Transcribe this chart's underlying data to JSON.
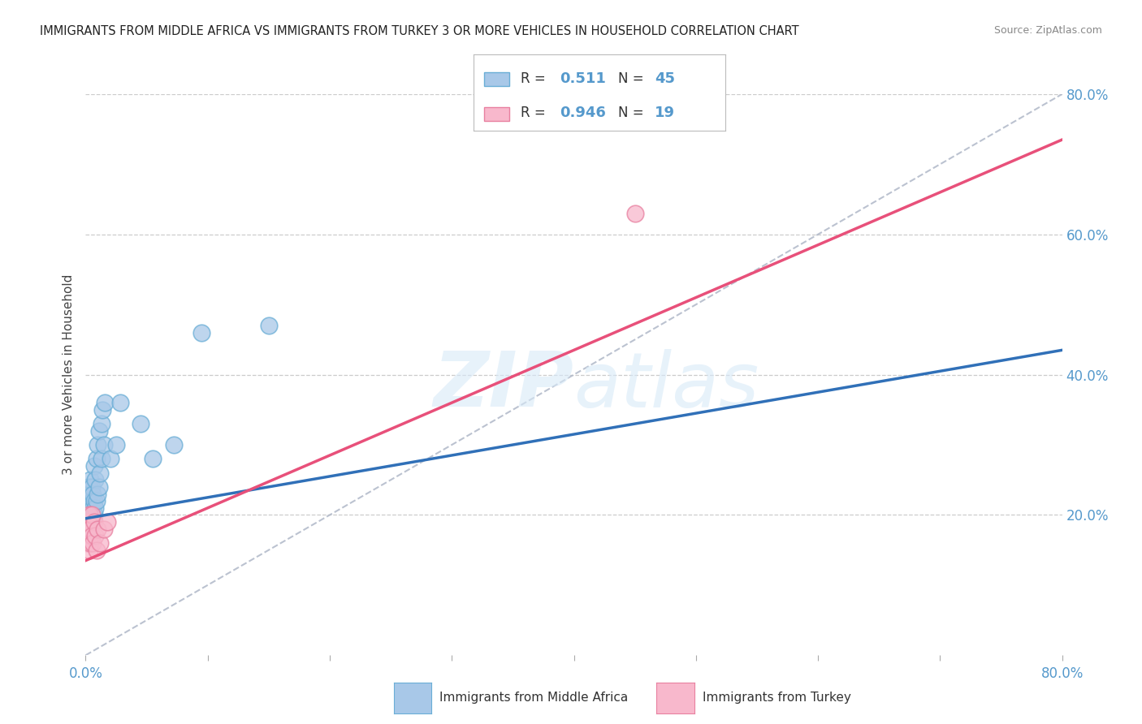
{
  "title": "IMMIGRANTS FROM MIDDLE AFRICA VS IMMIGRANTS FROM TURKEY 3 OR MORE VEHICLES IN HOUSEHOLD CORRELATION CHART",
  "source": "Source: ZipAtlas.com",
  "ylabel": "3 or more Vehicles in Household",
  "xlim": [
    0,
    0.8
  ],
  "ylim": [
    0,
    0.8
  ],
  "blue_color": "#a8c8e8",
  "blue_edge_color": "#6aaed6",
  "pink_color": "#f8b8cc",
  "pink_edge_color": "#e880a0",
  "blue_line_color": "#3070b8",
  "pink_line_color": "#e8507a",
  "dashed_line_color": "#b0b8c8",
  "legend_R1": "0.511",
  "legend_N1": "45",
  "legend_R2": "0.946",
  "legend_N2": "19",
  "legend_label1": "Immigrants from Middle Africa",
  "legend_label2": "Immigrants from Turkey",
  "watermark": "ZIPatlas",
  "blue_line_y0": 0.195,
  "blue_line_y1": 0.435,
  "pink_line_y0": 0.135,
  "pink_line_y1": 0.735,
  "blue_points_x": [
    0.001,
    0.001,
    0.001,
    0.002,
    0.002,
    0.002,
    0.003,
    0.003,
    0.003,
    0.003,
    0.004,
    0.004,
    0.004,
    0.004,
    0.005,
    0.005,
    0.005,
    0.006,
    0.006,
    0.006,
    0.007,
    0.007,
    0.007,
    0.008,
    0.008,
    0.009,
    0.009,
    0.01,
    0.01,
    0.011,
    0.011,
    0.012,
    0.013,
    0.013,
    0.014,
    0.015,
    0.016,
    0.02,
    0.025,
    0.028,
    0.045,
    0.055,
    0.072,
    0.095,
    0.15
  ],
  "blue_points_y": [
    0.19,
    0.21,
    0.22,
    0.2,
    0.22,
    0.24,
    0.18,
    0.2,
    0.22,
    0.24,
    0.19,
    0.21,
    0.23,
    0.25,
    0.2,
    0.22,
    0.24,
    0.19,
    0.21,
    0.23,
    0.2,
    0.22,
    0.27,
    0.21,
    0.25,
    0.22,
    0.28,
    0.23,
    0.3,
    0.24,
    0.32,
    0.26,
    0.28,
    0.33,
    0.35,
    0.3,
    0.36,
    0.28,
    0.3,
    0.36,
    0.33,
    0.28,
    0.3,
    0.46,
    0.47
  ],
  "pink_points_x": [
    0.001,
    0.001,
    0.002,
    0.002,
    0.003,
    0.003,
    0.004,
    0.004,
    0.005,
    0.005,
    0.006,
    0.007,
    0.008,
    0.009,
    0.01,
    0.012,
    0.015,
    0.018,
    0.45
  ],
  "pink_points_y": [
    0.16,
    0.18,
    0.17,
    0.19,
    0.15,
    0.2,
    0.16,
    0.18,
    0.17,
    0.2,
    0.16,
    0.19,
    0.17,
    0.15,
    0.18,
    0.16,
    0.18,
    0.19,
    0.63
  ]
}
